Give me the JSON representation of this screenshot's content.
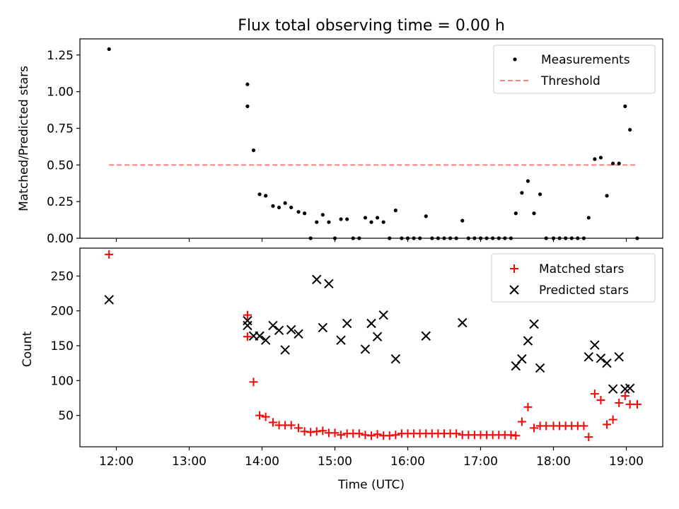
{
  "chart_data": [
    {
      "type": "scatter",
      "title": "Flux total observing time = 0.00 h",
      "xlabel": "",
      "ylabel": "Matched/Predicted stars",
      "ylim": [
        0,
        1.36
      ],
      "yticks": [
        "0.00",
        "0.25",
        "0.50",
        "0.75",
        "1.00",
        "1.25"
      ],
      "xlim": [
        "11:30",
        "19:30"
      ],
      "xtick_labels_visible": false,
      "legend_position": "top-right",
      "series": [
        {
          "name": "Measurements",
          "color": "#000000",
          "marker": "dot",
          "x": [
            "11:54",
            "13:48",
            "13:48",
            "13:53",
            "13:58",
            "14:03",
            "14:09",
            "14:14",
            "14:19",
            "14:24",
            "14:30",
            "14:35",
            "14:40",
            "14:45",
            "14:50",
            "14:55",
            "15:00",
            "15:05",
            "15:10",
            "15:15",
            "15:20",
            "15:25",
            "15:30",
            "15:35",
            "15:40",
            "15:45",
            "15:50",
            "15:55",
            "16:00",
            "16:05",
            "16:10",
            "16:15",
            "16:20",
            "16:25",
            "16:30",
            "16:35",
            "16:40",
            "16:45",
            "16:50",
            "16:55",
            "17:00",
            "17:05",
            "17:10",
            "17:15",
            "17:20",
            "17:25",
            "17:29",
            "17:34",
            "17:39",
            "17:44",
            "17:49",
            "17:54",
            "18:00",
            "18:05",
            "18:10",
            "18:15",
            "18:20",
            "18:25",
            "18:29",
            "18:34",
            "18:39",
            "18:44",
            "18:49",
            "18:54",
            "18:59",
            "19:03",
            "19:09"
          ],
          "y": [
            1.29,
            1.05,
            0.9,
            0.6,
            0.3,
            0.29,
            0.22,
            0.21,
            0.24,
            0.21,
            0.18,
            0.17,
            0.0,
            0.11,
            0.16,
            0.11,
            0.0,
            0.13,
            0.13,
            0.0,
            0.0,
            0.14,
            0.11,
            0.14,
            0.11,
            0.0,
            0.19,
            0.0,
            0.0,
            0.0,
            0.0,
            0.15,
            0.0,
            0.0,
            0.0,
            0.0,
            0.0,
            0.12,
            0.0,
            0.0,
            0.0,
            0.0,
            0.0,
            0.0,
            0.0,
            0.0,
            0.17,
            0.31,
            0.39,
            0.17,
            0.3,
            0.0,
            0.0,
            0.0,
            0.0,
            0.0,
            0.0,
            0.0,
            0.14,
            0.54,
            0.55,
            0.29,
            0.51,
            0.51,
            0.9,
            0.74,
            0.0
          ]
        },
        {
          "name": "Threshold",
          "color": "#ff7f7f",
          "style": "dashed",
          "x": [
            "11:54",
            "19:09"
          ],
          "y": [
            0.5,
            0.5
          ]
        }
      ]
    },
    {
      "type": "scatter",
      "title": "",
      "xlabel": "Time (UTC)",
      "ylabel": "Count",
      "ylim": [
        5,
        290
      ],
      "yticks": [
        "50",
        "100",
        "150",
        "200",
        "250"
      ],
      "xlim": [
        "11:30",
        "19:30"
      ],
      "xticks": [
        "12:00",
        "13:00",
        "14:00",
        "15:00",
        "16:00",
        "17:00",
        "18:00",
        "19:00"
      ],
      "legend_position": "top-right",
      "series": [
        {
          "name": "Matched stars",
          "color": "#ff0000",
          "marker": "plus",
          "x": [
            "11:54",
            "13:48",
            "13:48",
            "13:53",
            "13:58",
            "14:03",
            "14:09",
            "14:14",
            "14:19",
            "14:24",
            "14:30",
            "14:35",
            "14:40",
            "14:45",
            "14:50",
            "14:55",
            "15:00",
            "15:05",
            "15:10",
            "15:15",
            "15:20",
            "15:25",
            "15:30",
            "15:35",
            "15:40",
            "15:45",
            "15:50",
            "15:55",
            "16:00",
            "16:05",
            "16:10",
            "16:15",
            "16:20",
            "16:25",
            "16:30",
            "16:35",
            "16:40",
            "16:45",
            "16:50",
            "16:55",
            "17:00",
            "17:05",
            "17:10",
            "17:15",
            "17:20",
            "17:25",
            "17:29",
            "17:34",
            "17:39",
            "17:44",
            "17:49",
            "17:54",
            "18:00",
            "18:05",
            "18:10",
            "18:15",
            "18:20",
            "18:25",
            "18:29",
            "18:34",
            "18:39",
            "18:44",
            "18:49",
            "18:54",
            "18:59",
            "19:03",
            "19:09"
          ],
          "y": [
            281,
            194,
            163,
            98,
            50,
            48,
            40,
            36,
            36,
            36,
            32,
            27,
            26,
            27,
            28,
            25,
            25,
            22,
            24,
            24,
            24,
            22,
            21,
            23,
            21,
            21,
            22,
            24,
            24,
            24,
            24,
            24,
            24,
            24,
            24,
            24,
            24,
            22,
            22,
            22,
            22,
            22,
            22,
            22,
            22,
            22,
            21,
            41,
            62,
            32,
            35,
            35,
            35,
            35,
            35,
            35,
            35,
            35,
            19,
            81,
            72,
            37,
            44,
            68,
            78,
            66,
            66
          ]
        },
        {
          "name": "Predicted stars",
          "color": "#000000",
          "marker": "x",
          "x": [
            "11:54",
            "13:48",
            "13:48",
            "13:53",
            "13:58",
            "14:03",
            "14:09",
            "14:14",
            "14:19",
            "14:24",
            "14:30",
            "14:45",
            "14:50",
            "14:55",
            "15:05",
            "15:10",
            "15:25",
            "15:30",
            "15:35",
            "15:40",
            "15:50",
            "16:15",
            "16:45",
            "17:29",
            "17:34",
            "17:39",
            "17:44",
            "17:49",
            "18:29",
            "18:34",
            "18:39",
            "18:44",
            "18:49",
            "18:54",
            "18:59",
            "19:03"
          ],
          "y": [
            216,
            186,
            179,
            164,
            164,
            158,
            179,
            172,
            144,
            173,
            167,
            245,
            176,
            239,
            158,
            182,
            145,
            182,
            163,
            194,
            131,
            164,
            183,
            121,
            131,
            157,
            181,
            118,
            134,
            151,
            132,
            125,
            88,
            134,
            88,
            89
          ]
        }
      ]
    }
  ]
}
